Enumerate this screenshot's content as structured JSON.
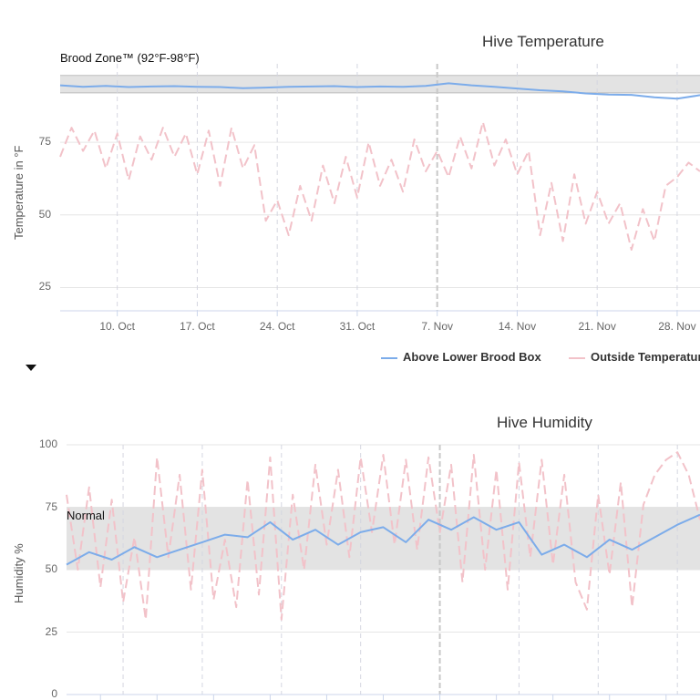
{
  "chart_data": [
    {
      "type": "line",
      "title": "Hive Temperature",
      "ylabel": "Temperature in °F",
      "ylim": [
        17,
        102
      ],
      "yticks": [
        25,
        50,
        75
      ],
      "x_start": "2021-10-05",
      "x_end": "2021-11-30",
      "xtick_labels": [
        "10. Oct",
        "17. Oct",
        "24. Oct",
        "31. Oct",
        "7. Nov",
        "14. Nov",
        "21. Nov",
        "28. Nov"
      ],
      "xtick_dates": [
        "2021-10-10",
        "2021-10-17",
        "2021-10-24",
        "2021-10-31",
        "2021-11-07",
        "2021-11-14",
        "2021-11-21",
        "2021-11-28"
      ],
      "band": {
        "label": "Brood Zone™ (92°F-98°F)",
        "from": 92,
        "to": 98,
        "color": "#e3e3e3"
      },
      "series": [
        {
          "name": "Above Lower Brood Box",
          "color": "#7cacea",
          "dash": "solid",
          "points": [
            [
              "2021-10-05",
              94.6
            ],
            [
              "2021-10-07",
              94.1
            ],
            [
              "2021-10-09",
              94.4
            ],
            [
              "2021-10-11",
              94.0
            ],
            [
              "2021-10-13",
              94.2
            ],
            [
              "2021-10-15",
              94.3
            ],
            [
              "2021-10-17",
              94.1
            ],
            [
              "2021-10-19",
              94.0
            ],
            [
              "2021-10-21",
              93.6
            ],
            [
              "2021-10-23",
              93.8
            ],
            [
              "2021-10-25",
              94.1
            ],
            [
              "2021-10-27",
              94.2
            ],
            [
              "2021-10-29",
              94.3
            ],
            [
              "2021-10-31",
              94.0
            ],
            [
              "2021-11-02",
              94.2
            ],
            [
              "2021-11-04",
              94.1
            ],
            [
              "2021-11-06",
              94.4
            ],
            [
              "2021-11-08",
              95.3
            ],
            [
              "2021-11-10",
              94.6
            ],
            [
              "2021-11-12",
              94.1
            ],
            [
              "2021-11-14",
              93.5
            ],
            [
              "2021-11-16",
              92.9
            ],
            [
              "2021-11-18",
              92.5
            ],
            [
              "2021-11-20",
              91.8
            ],
            [
              "2021-11-22",
              91.4
            ],
            [
              "2021-11-24",
              91.3
            ],
            [
              "2021-11-26",
              90.5
            ],
            [
              "2021-11-28",
              90.0
            ],
            [
              "2021-11-30",
              91.2
            ]
          ]
        },
        {
          "name": "Outside Temperature",
          "color": "#f2c2c9",
          "dash": "dashed",
          "points": [
            [
              "2021-10-05",
              70
            ],
            [
              "2021-10-06",
              80
            ],
            [
              "2021-10-07",
              72
            ],
            [
              "2021-10-08",
              79
            ],
            [
              "2021-10-09",
              66
            ],
            [
              "2021-10-10",
              78
            ],
            [
              "2021-10-11",
              62
            ],
            [
              "2021-10-12",
              77
            ],
            [
              "2021-10-13",
              69
            ],
            [
              "2021-10-14",
              80
            ],
            [
              "2021-10-15",
              70
            ],
            [
              "2021-10-16",
              78
            ],
            [
              "2021-10-17",
              64
            ],
            [
              "2021-10-18",
              79
            ],
            [
              "2021-10-19",
              60
            ],
            [
              "2021-10-20",
              80
            ],
            [
              "2021-10-21",
              66
            ],
            [
              "2021-10-22",
              74
            ],
            [
              "2021-10-23",
              48
            ],
            [
              "2021-10-24",
              55
            ],
            [
              "2021-10-25",
              43
            ],
            [
              "2021-10-26",
              60
            ],
            [
              "2021-10-27",
              48
            ],
            [
              "2021-10-28",
              67
            ],
            [
              "2021-10-29",
              54
            ],
            [
              "2021-10-30",
              70
            ],
            [
              "2021-10-31",
              56
            ],
            [
              "2021-11-01",
              75
            ],
            [
              "2021-11-02",
              60
            ],
            [
              "2021-11-03",
              69
            ],
            [
              "2021-11-04",
              58
            ],
            [
              "2021-11-05",
              76
            ],
            [
              "2021-11-06",
              65
            ],
            [
              "2021-11-07",
              72
            ],
            [
              "2021-11-08",
              63
            ],
            [
              "2021-11-09",
              77
            ],
            [
              "2021-11-10",
              66
            ],
            [
              "2021-11-11",
              82
            ],
            [
              "2021-11-12",
              67
            ],
            [
              "2021-11-13",
              76
            ],
            [
              "2021-11-14",
              64
            ],
            [
              "2021-11-15",
              72
            ],
            [
              "2021-11-16",
              43
            ],
            [
              "2021-11-17",
              61
            ],
            [
              "2021-11-18",
              41
            ],
            [
              "2021-11-19",
              64
            ],
            [
              "2021-11-20",
              47
            ],
            [
              "2021-11-21",
              58
            ],
            [
              "2021-11-22",
              47
            ],
            [
              "2021-11-23",
              54
            ],
            [
              "2021-11-24",
              38
            ],
            [
              "2021-11-25",
              52
            ],
            [
              "2021-11-26",
              41
            ],
            [
              "2021-11-27",
              60
            ],
            [
              "2021-11-28",
              63
            ],
            [
              "2021-11-29",
              68
            ],
            [
              "2021-11-30",
              65
            ]
          ]
        }
      ]
    },
    {
      "type": "line",
      "title": "Hive Humidity",
      "ylabel": "Humidity %",
      "ylim": [
        0,
        100
      ],
      "yticks": [
        0,
        25,
        50,
        75,
        100
      ],
      "x_start": "2021-10-05",
      "x_end": "2021-11-30",
      "band": {
        "label": "Normal",
        "from": 50,
        "to": 75,
        "color": "#e3e3e3"
      },
      "series": [
        {
          "name": "Above Lower Brood Box",
          "color": "#7cacea",
          "dash": "solid",
          "points": [
            [
              "2021-10-05",
              52
            ],
            [
              "2021-10-07",
              57
            ],
            [
              "2021-10-09",
              54
            ],
            [
              "2021-10-11",
              59
            ],
            [
              "2021-10-13",
              55
            ],
            [
              "2021-10-15",
              58
            ],
            [
              "2021-10-17",
              61
            ],
            [
              "2021-10-19",
              64
            ],
            [
              "2021-10-21",
              63
            ],
            [
              "2021-10-23",
              69
            ],
            [
              "2021-10-25",
              62
            ],
            [
              "2021-10-27",
              66
            ],
            [
              "2021-10-29",
              60
            ],
            [
              "2021-10-31",
              65
            ],
            [
              "2021-11-02",
              67
            ],
            [
              "2021-11-04",
              61
            ],
            [
              "2021-11-06",
              70
            ],
            [
              "2021-11-08",
              66
            ],
            [
              "2021-11-10",
              71
            ],
            [
              "2021-11-12",
              66
            ],
            [
              "2021-11-14",
              69
            ],
            [
              "2021-11-16",
              56
            ],
            [
              "2021-11-18",
              60
            ],
            [
              "2021-11-20",
              55
            ],
            [
              "2021-11-22",
              62
            ],
            [
              "2021-11-24",
              58
            ],
            [
              "2021-11-26",
              63
            ],
            [
              "2021-11-28",
              68
            ],
            [
              "2021-11-30",
              72
            ]
          ]
        },
        {
          "name": "Outside Temperature",
          "color": "#f2c2c9",
          "dash": "dashed",
          "points": [
            [
              "2021-10-05",
              80
            ],
            [
              "2021-10-06",
              50
            ],
            [
              "2021-10-07",
              83
            ],
            [
              "2021-10-08",
              43
            ],
            [
              "2021-10-09",
              78
            ],
            [
              "2021-10-10",
              37
            ],
            [
              "2021-10-11",
              63
            ],
            [
              "2021-10-12",
              30
            ],
            [
              "2021-10-13",
              95
            ],
            [
              "2021-10-14",
              55
            ],
            [
              "2021-10-15",
              88
            ],
            [
              "2021-10-16",
              42
            ],
            [
              "2021-10-17",
              90
            ],
            [
              "2021-10-18",
              38
            ],
            [
              "2021-10-19",
              62
            ],
            [
              "2021-10-20",
              35
            ],
            [
              "2021-10-21",
              86
            ],
            [
              "2021-10-22",
              40
            ],
            [
              "2021-10-23",
              95
            ],
            [
              "2021-10-24",
              30
            ],
            [
              "2021-10-25",
              80
            ],
            [
              "2021-10-26",
              50
            ],
            [
              "2021-10-27",
              92
            ],
            [
              "2021-10-28",
              60
            ],
            [
              "2021-10-29",
              90
            ],
            [
              "2021-10-30",
              55
            ],
            [
              "2021-10-31",
              95
            ],
            [
              "2021-11-01",
              65
            ],
            [
              "2021-11-02",
              96
            ],
            [
              "2021-11-03",
              60
            ],
            [
              "2021-11-04",
              94
            ],
            [
              "2021-11-05",
              58
            ],
            [
              "2021-11-06",
              95
            ],
            [
              "2021-11-07",
              65
            ],
            [
              "2021-11-08",
              92
            ],
            [
              "2021-11-09",
              45
            ],
            [
              "2021-11-10",
              96
            ],
            [
              "2021-11-11",
              50
            ],
            [
              "2021-11-12",
              90
            ],
            [
              "2021-11-13",
              42
            ],
            [
              "2021-11-14",
              93
            ],
            [
              "2021-11-15",
              55
            ],
            [
              "2021-11-16",
              94
            ],
            [
              "2021-11-17",
              52
            ],
            [
              "2021-11-18",
              88
            ],
            [
              "2021-11-19",
              45
            ],
            [
              "2021-11-20",
              34
            ],
            [
              "2021-11-21",
              80
            ],
            [
              "2021-11-22",
              48
            ],
            [
              "2021-11-23",
              85
            ],
            [
              "2021-11-24",
              35
            ],
            [
              "2021-11-25",
              76
            ],
            [
              "2021-11-26",
              88
            ],
            [
              "2021-11-27",
              94
            ],
            [
              "2021-11-28",
              97
            ],
            [
              "2021-11-29",
              88
            ],
            [
              "2021-11-30",
              70
            ]
          ]
        }
      ]
    }
  ],
  "legend": {
    "items": [
      {
        "label": "Above Lower Brood Box",
        "color": "#7cacea"
      },
      {
        "label": "Outside Temperature",
        "color": "#f2c2c9"
      }
    ]
  }
}
